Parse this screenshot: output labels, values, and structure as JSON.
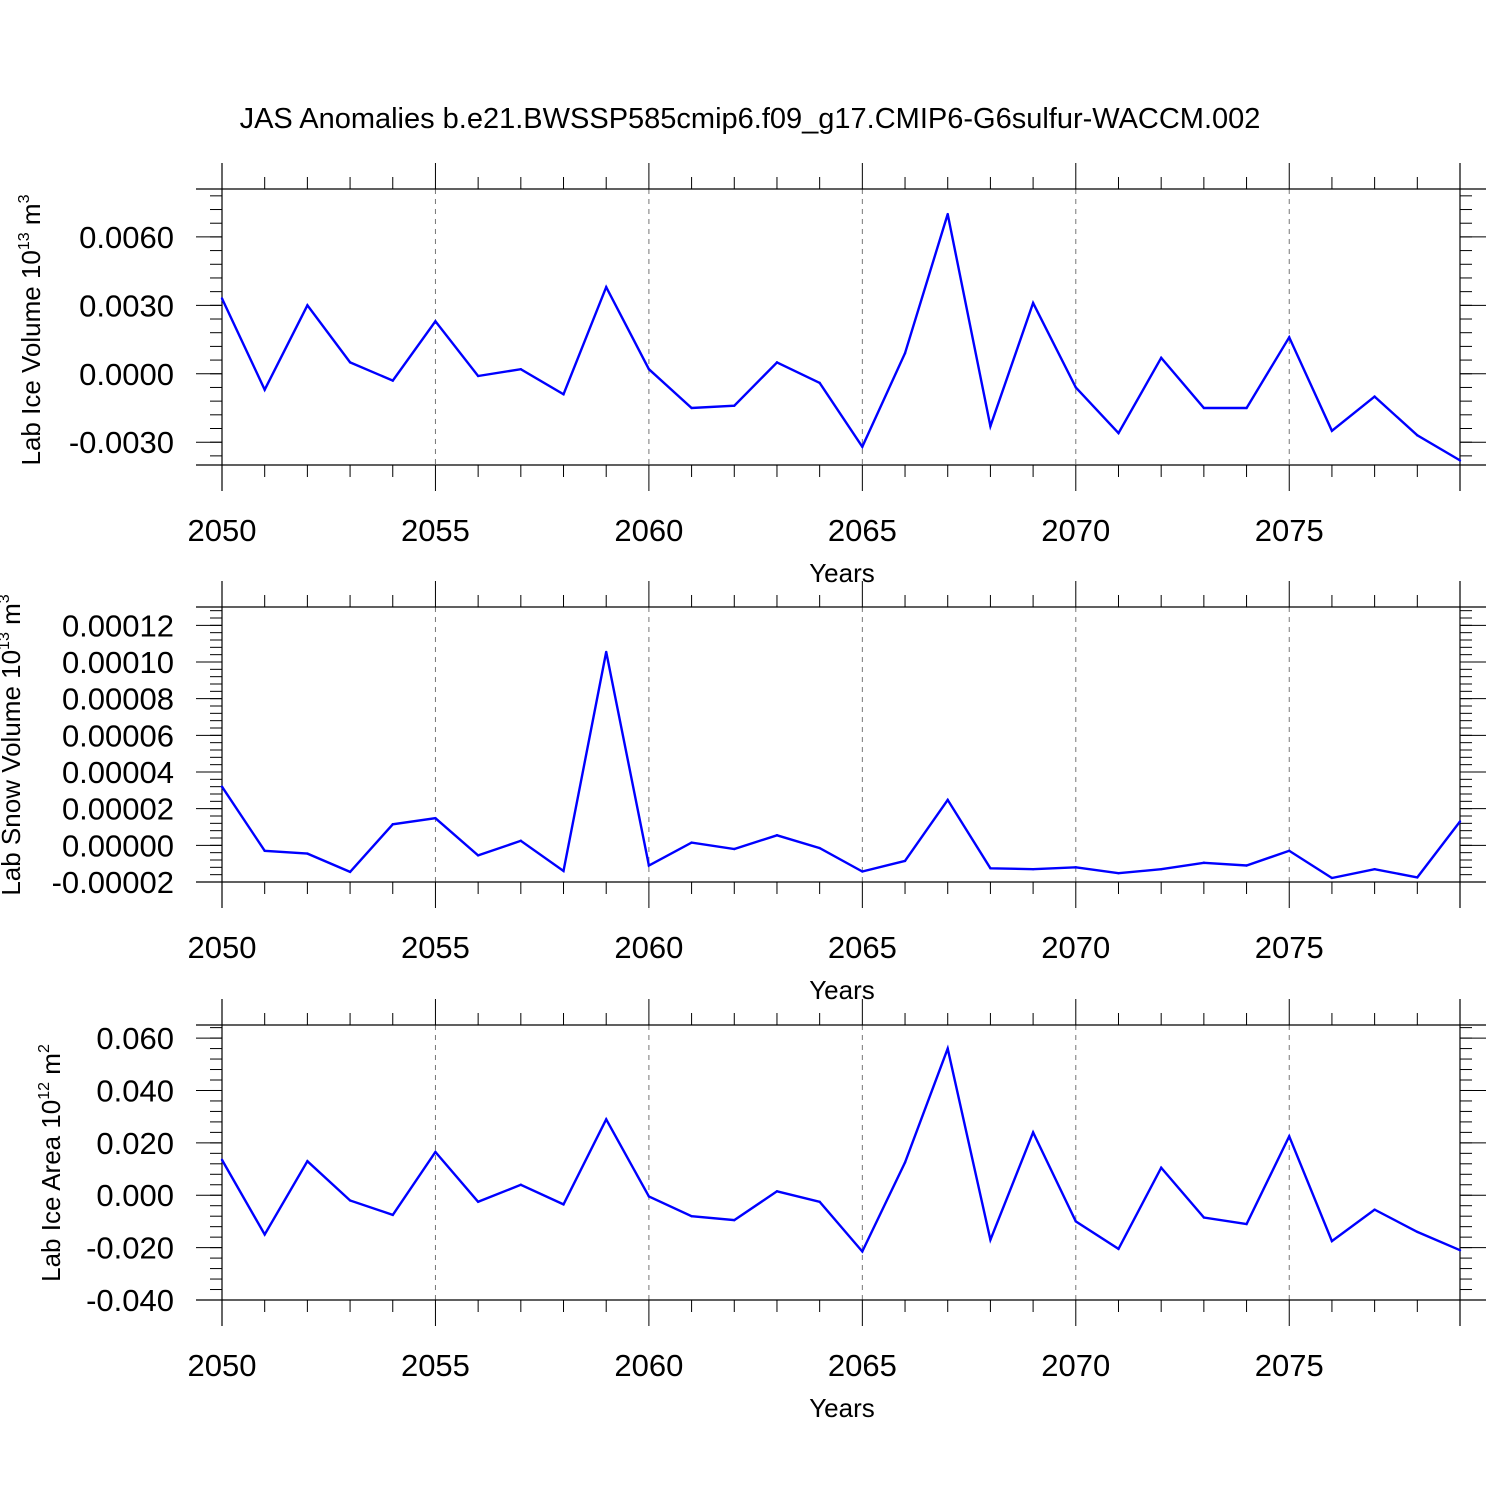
{
  "title": "JAS Anomalies b.e21.BWSSP585cmip6.f09_g17.CMIP6-G6sulfur-WACCM.002",
  "colors": {
    "line": "#0000ff",
    "axis": "#000000",
    "grid": "#777777"
  },
  "chart_data": [
    {
      "type": "line",
      "ylabel": "Lab Ice Volume 10",
      "ylabel_sup": "13",
      "ylabel_unit": "m",
      "ylabel_unit_sup": "3",
      "xlabel": "Years",
      "xlim": [
        2050,
        2079
      ],
      "ylim": [
        -0.004,
        0.0081
      ],
      "xticks": [
        2050,
        2055,
        2060,
        2065,
        2070,
        2075
      ],
      "xtick_labels": [
        "2050",
        "2055",
        "2060",
        "2065",
        "2070",
        "2075"
      ],
      "yticks": [
        -0.003,
        0,
        0.003,
        0.006
      ],
      "ytick_labels": [
        "-0.0030",
        "0.0000",
        "0.0030",
        "0.0060"
      ],
      "yminor_step": 0.0006,
      "grid": "vertical-dashed",
      "series": [
        {
          "name": "Lab Ice Volume",
          "x": [
            2050,
            2051,
            2052,
            2053,
            2054,
            2055,
            2056,
            2057,
            2058,
            2059,
            2060,
            2061,
            2062,
            2063,
            2064,
            2065,
            2066,
            2067,
            2068,
            2069,
            2070,
            2071,
            2072,
            2073,
            2074,
            2075,
            2076,
            2077,
            2078,
            2079
          ],
          "values": [
            0.0033,
            -0.0007,
            0.003,
            0.0005,
            -0.0003,
            0.0023,
            -0.0001,
            0.0002,
            -0.0009,
            0.0038,
            0.0002,
            -0.0015,
            -0.0014,
            0.0005,
            -0.0004,
            -0.0032,
            0.0009,
            0.007,
            -0.0023,
            0.0031,
            -0.0006,
            -0.0026,
            0.0007,
            -0.0015,
            -0.0015,
            0.0016,
            -0.0025,
            -0.001,
            -0.0027,
            -0.0038
          ]
        }
      ]
    },
    {
      "type": "line",
      "ylabel": "Lab Snow Volume 10",
      "ylabel_sup": "13",
      "ylabel_unit": "m",
      "ylabel_unit_sup": "3",
      "xlabel": "Years",
      "xlim": [
        2050,
        2079
      ],
      "ylim": [
        -2e-05,
        0.00013
      ],
      "xticks": [
        2050,
        2055,
        2060,
        2065,
        2070,
        2075
      ],
      "xtick_labels": [
        "2050",
        "2055",
        "2060",
        "2065",
        "2070",
        "2075"
      ],
      "yticks": [
        -2e-05,
        0,
        2e-05,
        4e-05,
        6e-05,
        8e-05,
        0.0001,
        0.00012
      ],
      "ytick_labels": [
        "-0.00002",
        "0.00000",
        "0.00002",
        "0.00004",
        "0.00006",
        "0.00008",
        "0.00010",
        "0.00012"
      ],
      "yminor_step": 4e-06,
      "grid": "vertical-dashed",
      "series": [
        {
          "name": "Lab Snow Volume",
          "x": [
            2050,
            2051,
            2052,
            2053,
            2054,
            2055,
            2056,
            2057,
            2058,
            2059,
            2060,
            2061,
            2062,
            2063,
            2064,
            2065,
            2066,
            2067,
            2068,
            2069,
            2070,
            2071,
            2072,
            2073,
            2074,
            2075,
            2076,
            2077,
            2078,
            2079
          ],
          "values": [
            3.2e-05,
            -3e-06,
            -4.5e-06,
            -1.45e-05,
            1.15e-05,
            1.48e-05,
            -5.5e-06,
            2.5e-06,
            -1.4e-05,
            0.0001055,
            -1.1e-05,
            1.5e-06,
            -2e-06,
            5.5e-06,
            -1.5e-06,
            -1.43e-05,
            -8.5e-06,
            2.48e-05,
            -1.25e-05,
            -1.3e-05,
            -1.2e-05,
            -1.52e-05,
            -1.3e-05,
            -9.5e-06,
            -1.1e-05,
            -3e-06,
            -1.78e-05,
            -1.3e-05,
            -1.75e-05,
            1.3e-05
          ]
        }
      ]
    },
    {
      "type": "line",
      "ylabel": "Lab Ice Area 10",
      "ylabel_sup": "12",
      "ylabel_unit": "m",
      "ylabel_unit_sup": "2",
      "xlabel": "Years",
      "xlim": [
        2050,
        2079
      ],
      "ylim": [
        -0.04,
        0.065
      ],
      "xticks": [
        2050,
        2055,
        2060,
        2065,
        2070,
        2075
      ],
      "xtick_labels": [
        "2050",
        "2055",
        "2060",
        "2065",
        "2070",
        "2075"
      ],
      "yticks": [
        -0.04,
        -0.02,
        0,
        0.02,
        0.04,
        0.06
      ],
      "ytick_labels": [
        "-0.040",
        "-0.020",
        "0.000",
        "0.020",
        "0.040",
        "0.060"
      ],
      "yminor_step": 0.004,
      "grid": "vertical-dashed",
      "series": [
        {
          "name": "Lab Ice Area",
          "x": [
            2050,
            2051,
            2052,
            2053,
            2054,
            2055,
            2056,
            2057,
            2058,
            2059,
            2060,
            2061,
            2062,
            2063,
            2064,
            2065,
            2066,
            2067,
            2068,
            2069,
            2070,
            2071,
            2072,
            2073,
            2074,
            2075,
            2076,
            2077,
            2078,
            2079
          ],
          "values": [
            0.0135,
            -0.015,
            0.013,
            -0.002,
            -0.0075,
            0.0165,
            -0.0025,
            0.004,
            -0.0035,
            0.029,
            -0.0005,
            -0.008,
            -0.0095,
            0.0015,
            -0.0025,
            -0.0215,
            0.0125,
            0.056,
            -0.017,
            0.024,
            -0.01,
            -0.0205,
            0.0105,
            -0.0085,
            -0.011,
            0.0225,
            -0.0175,
            -0.0055,
            -0.014,
            -0.021
          ]
        }
      ]
    }
  ]
}
